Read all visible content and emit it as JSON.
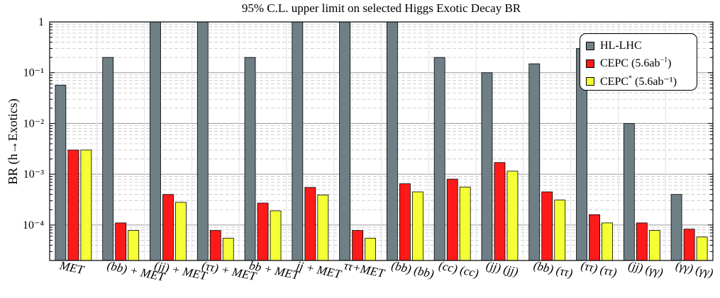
{
  "chart_data": {
    "type": "bar",
    "title": "95% C.L. upper limit on selected Higgs Exotic Decay BR",
    "ylabel": "BR (h→Exotics)",
    "yscale": "log",
    "ylim": [
      2e-05,
      1
    ],
    "yticks": [
      {
        "value": 1,
        "label": "1"
      },
      {
        "value": 0.1,
        "label": "10⁻¹"
      },
      {
        "value": 0.01,
        "label": "10⁻²"
      },
      {
        "value": 0.001,
        "label": "10⁻³"
      },
      {
        "value": 0.0001,
        "label": "10⁻⁴"
      }
    ],
    "grid": true,
    "legend_position": "top-right",
    "categories": [
      "MET",
      "(bb) + MET",
      "(jj) + MET",
      "(ττ) + MET",
      "bb + MET",
      "jj + MET",
      "ττ+MET",
      "(bb) (bb)",
      "(cc) (cc)",
      "(jj) (jj)",
      "(bb) (ττ)",
      "(ττ) (ττ)",
      "(jj) (γγ)",
      "(γγ) (γγ)"
    ],
    "series": [
      {
        "name": "HL-LHC",
        "color": "#6f7f86",
        "values": [
          0.057,
          0.2,
          1,
          1,
          0.2,
          1,
          1,
          1,
          0.2,
          0.1,
          0.15,
          0.3,
          0.01,
          0.0004
        ]
      },
      {
        "name": "CEPC (5.6ab⁻¹)",
        "color": "#ff1a1a",
        "values": [
          0.003,
          0.00011,
          0.0004,
          7.8e-05,
          0.00027,
          0.00055,
          7.8e-05,
          0.00065,
          0.0008,
          0.0017,
          0.00045,
          0.00016,
          0.00011,
          8.3e-05
        ]
      },
      {
        "name": "CEPC* (5.6ab⁻¹)",
        "color": "#f4ff35",
        "values": [
          0.003,
          7.8e-05,
          0.00028,
          5.5e-05,
          0.00019,
          0.00039,
          5.5e-05,
          0.00045,
          0.00056,
          0.00115,
          0.00031,
          0.00011,
          7.8e-05,
          5.8e-05
        ]
      }
    ]
  },
  "legend": {
    "items": [
      {
        "label": "HL-LHC",
        "sup": "",
        "suffix": "",
        "color": "#6f7f86"
      },
      {
        "label": "CEPC (5.6ab",
        "sup": "−1",
        "suffix": ")",
        "color": "#ff1a1a"
      },
      {
        "label": "CEPC",
        "sup": "*",
        "suffix": " (5.6ab⁻¹)",
        "color": "#f4ff35"
      }
    ]
  }
}
